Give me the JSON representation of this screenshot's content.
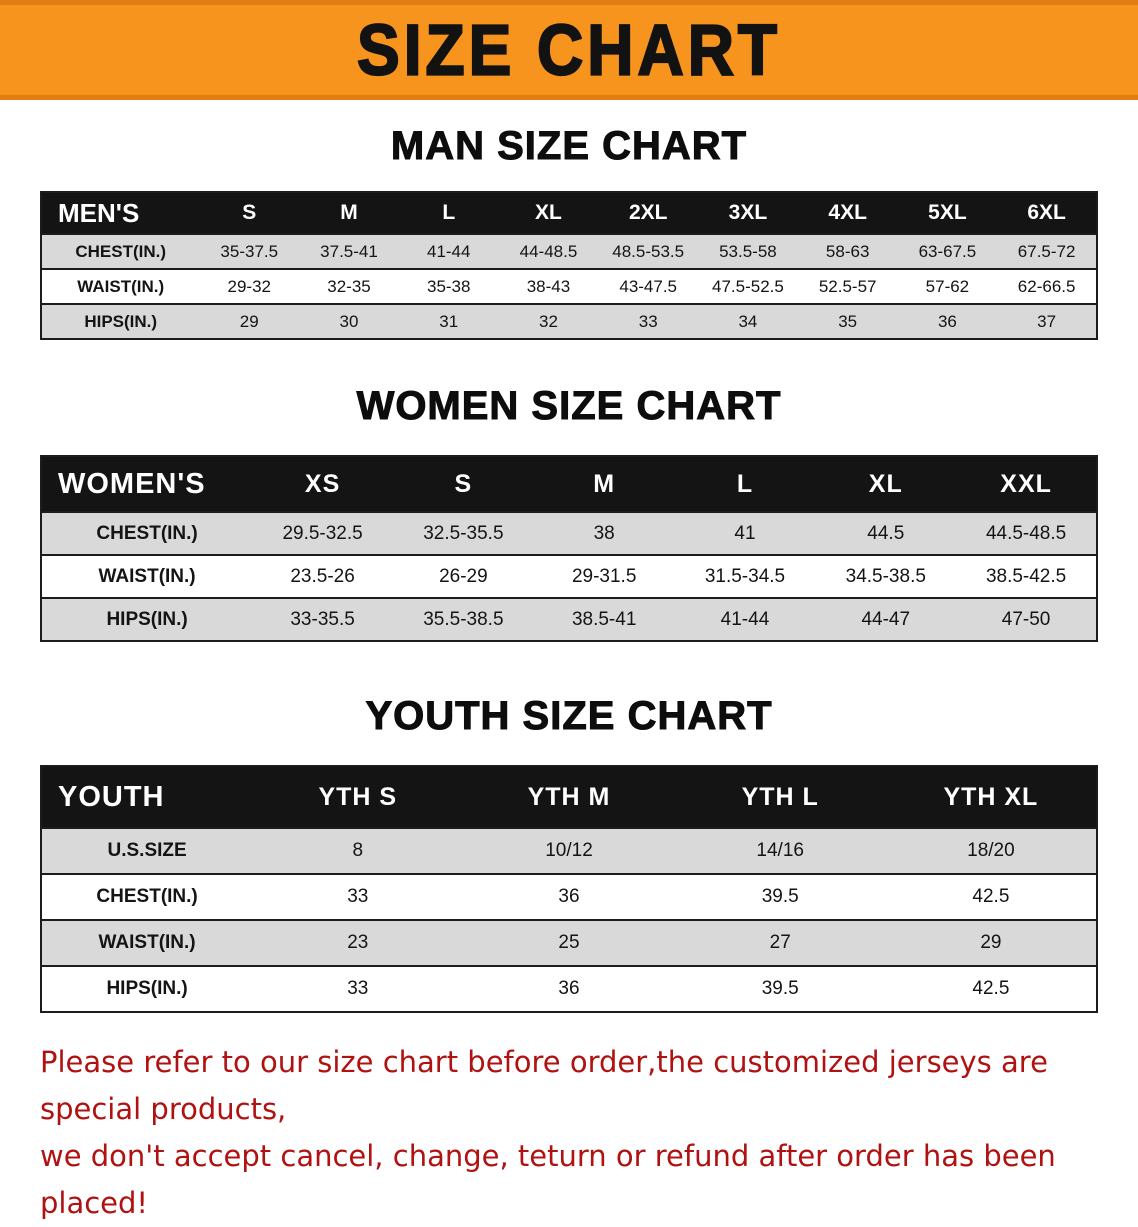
{
  "banner": {
    "title": "SIZE CHART"
  },
  "notice": {
    "line1": "Please refer to our size chart before order,the customized jerseys are special products,",
    "line2": "we don't accept cancel, change, teturn or refund after order has been placed!"
  },
  "colors": {
    "banner_bg": "#f7941d",
    "banner_edge": "#e07d13",
    "banner_text": "#121212",
    "table_header_bg": "#141414",
    "table_header_text": "#ffffff",
    "row_stripe": "#d9d9d9",
    "notice_text": "#b01212"
  },
  "chart_data": [
    {
      "type": "table",
      "title": "MAN SIZE CHART",
      "columns": [
        "MEN'S",
        "S",
        "M",
        "L",
        "XL",
        "2XL",
        "3XL",
        "4XL",
        "5XL",
        "6XL"
      ],
      "rows": [
        [
          "CHEST(IN.)",
          "35-37.5",
          "37.5-41",
          "41-44",
          "44-48.5",
          "48.5-53.5",
          "53.5-58",
          "58-63",
          "63-67.5",
          "67.5-72"
        ],
        [
          "WAIST(IN.)",
          "29-32",
          "32-35",
          "35-38",
          "38-43",
          "43-47.5",
          "47.5-52.5",
          "52.5-57",
          "57-62",
          "62-66.5"
        ],
        [
          "HIPS(IN.)",
          "29",
          "30",
          "31",
          "32",
          "33",
          "34",
          "35",
          "36",
          "37"
        ]
      ]
    },
    {
      "type": "table",
      "title": "WOMEN SIZE CHART",
      "columns": [
        "WOMEN'S",
        "XS",
        "S",
        "M",
        "L",
        "XL",
        "XXL"
      ],
      "rows": [
        [
          "CHEST(IN.)",
          "29.5-32.5",
          "32.5-35.5",
          "38",
          "41",
          "44.5",
          "44.5-48.5"
        ],
        [
          "WAIST(IN.)",
          "23.5-26",
          "26-29",
          "29-31.5",
          "31.5-34.5",
          "34.5-38.5",
          "38.5-42.5"
        ],
        [
          "HIPS(IN.)",
          "33-35.5",
          "35.5-38.5",
          "38.5-41",
          "41-44",
          "44-47",
          "47-50"
        ]
      ]
    },
    {
      "type": "table",
      "title": "YOUTH SIZE CHART",
      "columns": [
        "YOUTH",
        "YTH S",
        "YTH M",
        "YTH L",
        "YTH XL"
      ],
      "rows": [
        [
          "U.S.SIZE",
          "8",
          "10/12",
          "14/16",
          "18/20"
        ],
        [
          "CHEST(IN.)",
          "33",
          "36",
          "39.5",
          "42.5"
        ],
        [
          "WAIST(IN.)",
          "23",
          "25",
          "27",
          "29"
        ],
        [
          "HIPS(IN.)",
          "33",
          "36",
          "39.5",
          "42.5"
        ]
      ]
    }
  ]
}
